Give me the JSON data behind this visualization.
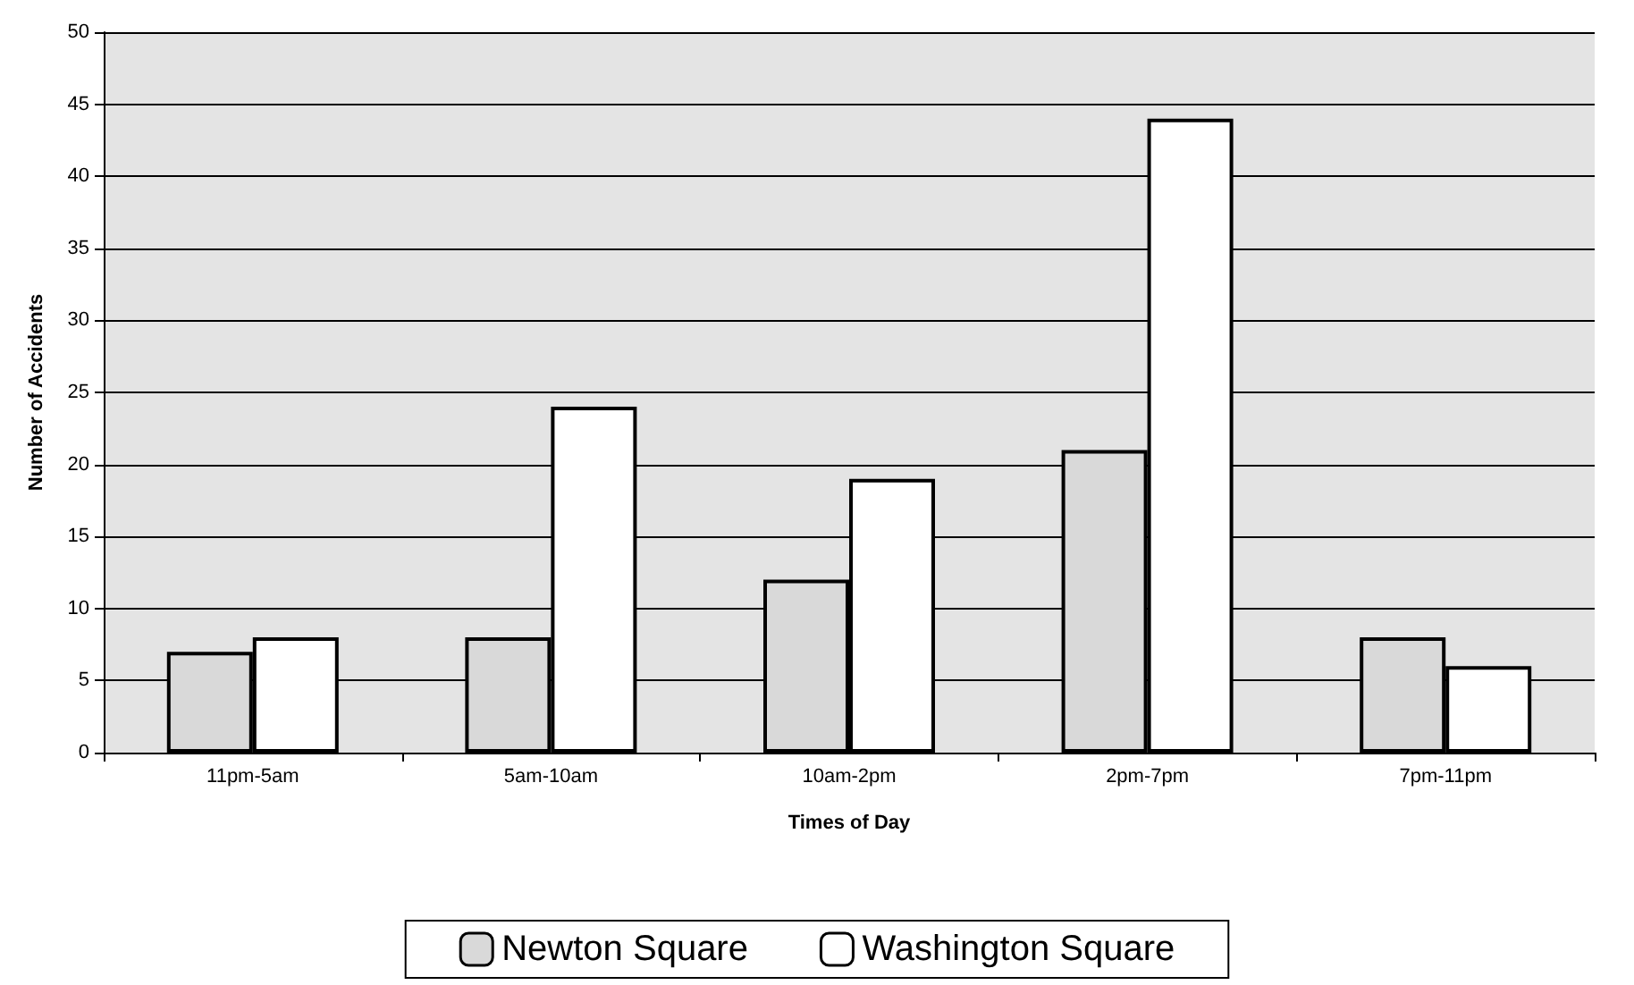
{
  "chart_data": {
    "type": "bar",
    "xlabel": "Times of Day",
    "ylabel": "Number of Accidents",
    "categories": [
      "11pm-5am",
      "5am-10am",
      "10am-2pm",
      "2pm-7pm",
      "7pm-11pm"
    ],
    "series": [
      {
        "name": "Newton Square",
        "color": "#d9d9d9",
        "values": [
          7,
          8,
          12,
          21,
          8
        ]
      },
      {
        "name": "Washington Square",
        "color": "#ffffff",
        "values": [
          8,
          24,
          19,
          44,
          6
        ]
      }
    ],
    "ylim": [
      0,
      50
    ],
    "yticks": [
      0,
      5,
      10,
      15,
      20,
      25,
      30,
      35,
      40,
      45,
      50
    ],
    "grid": "y",
    "legend": "bottom"
  }
}
